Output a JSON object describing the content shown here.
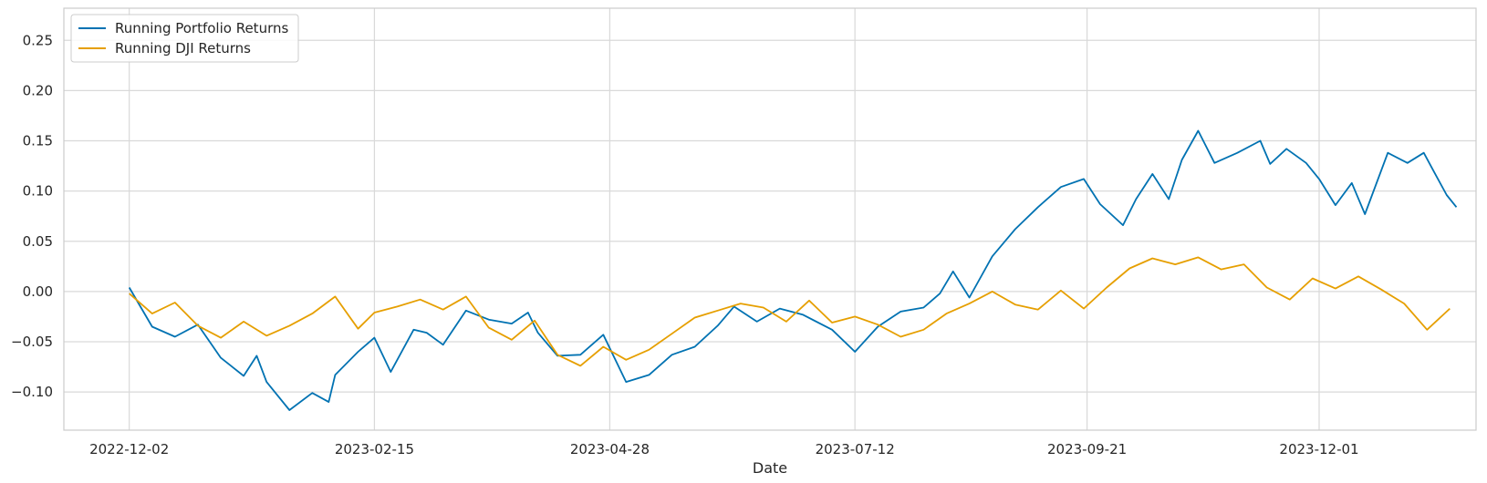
{
  "chart_data": {
    "type": "line",
    "title": "",
    "xlabel": "Date",
    "ylabel": "",
    "grid": true,
    "legend_position": "upper-left",
    "x_tick_labels": [
      "2022-12-02",
      "2023-02-15",
      "2023-04-28",
      "2023-07-12",
      "2023-09-21",
      "2023-12-01"
    ],
    "y_ticks": [
      -0.1,
      -0.05,
      0.0,
      0.05,
      0.1,
      0.15,
      0.2,
      0.25
    ],
    "y_tick_labels": [
      "−0.10",
      "−0.05",
      "0.00",
      "0.05",
      "0.10",
      "0.15",
      "0.20",
      "0.25"
    ],
    "ylim": [
      -0.138,
      0.282
    ],
    "xlim": [
      "2022-11-12",
      "2024-01-18"
    ],
    "series": [
      {
        "name": "Running Portfolio Returns",
        "color": "#0072b2",
        "points": [
          [
            "2022-12-02",
            0.004
          ],
          [
            "2022-12-09",
            -0.035
          ],
          [
            "2022-12-16",
            -0.045
          ],
          [
            "2022-12-23",
            -0.033
          ],
          [
            "2022-12-30",
            -0.066
          ],
          [
            "2023-01-06",
            -0.084
          ],
          [
            "2023-01-10",
            -0.064
          ],
          [
            "2023-01-13",
            -0.09
          ],
          [
            "2023-01-20",
            -0.118
          ],
          [
            "2023-01-27",
            -0.101
          ],
          [
            "2023-02-01",
            -0.11
          ],
          [
            "2023-02-03",
            -0.083
          ],
          [
            "2023-02-10",
            -0.06
          ],
          [
            "2023-02-15",
            -0.046
          ],
          [
            "2023-02-20",
            -0.08
          ],
          [
            "2023-02-27",
            -0.038
          ],
          [
            "2023-03-03",
            -0.041
          ],
          [
            "2023-03-08",
            -0.053
          ],
          [
            "2023-03-15",
            -0.019
          ],
          [
            "2023-03-22",
            -0.028
          ],
          [
            "2023-03-29",
            -0.032
          ],
          [
            "2023-04-03",
            -0.021
          ],
          [
            "2023-04-06",
            -0.041
          ],
          [
            "2023-04-12",
            -0.064
          ],
          [
            "2023-04-19",
            -0.063
          ],
          [
            "2023-04-26",
            -0.043
          ],
          [
            "2023-05-03",
            -0.09
          ],
          [
            "2023-05-10",
            -0.083
          ],
          [
            "2023-05-17",
            -0.063
          ],
          [
            "2023-05-24",
            -0.055
          ],
          [
            "2023-05-31",
            -0.034
          ],
          [
            "2023-06-05",
            -0.015
          ],
          [
            "2023-06-12",
            -0.03
          ],
          [
            "2023-06-19",
            -0.017
          ],
          [
            "2023-06-26",
            -0.023
          ],
          [
            "2023-07-05",
            -0.038
          ],
          [
            "2023-07-12",
            -0.06
          ],
          [
            "2023-07-19",
            -0.035
          ],
          [
            "2023-07-26",
            -0.02
          ],
          [
            "2023-08-02",
            -0.016
          ],
          [
            "2023-08-07",
            -0.002
          ],
          [
            "2023-08-11",
            0.02
          ],
          [
            "2023-08-16",
            -0.006
          ],
          [
            "2023-08-23",
            0.035
          ],
          [
            "2023-08-30",
            0.062
          ],
          [
            "2023-09-06",
            0.084
          ],
          [
            "2023-09-13",
            0.104
          ],
          [
            "2023-09-20",
            0.112
          ],
          [
            "2023-09-25",
            0.087
          ],
          [
            "2023-10-02",
            0.066
          ],
          [
            "2023-10-06",
            0.092
          ],
          [
            "2023-10-11",
            0.117
          ],
          [
            "2023-10-16",
            0.092
          ],
          [
            "2023-10-20",
            0.131
          ],
          [
            "2023-10-25",
            0.16
          ],
          [
            "2023-10-30",
            0.128
          ],
          [
            "2023-11-06",
            0.138
          ],
          [
            "2023-11-13",
            0.15
          ],
          [
            "2023-11-16",
            0.127
          ],
          [
            "2023-11-21",
            0.142
          ],
          [
            "2023-11-27",
            0.128
          ],
          [
            "2023-12-01",
            0.112
          ],
          [
            "2023-12-06",
            0.086
          ],
          [
            "2023-12-11",
            0.108
          ],
          [
            "2023-12-15",
            0.077
          ],
          [
            "2023-12-22",
            0.138
          ],
          [
            "2023-12-28",
            0.128
          ],
          [
            "2024-01-02",
            0.138
          ],
          [
            "2024-01-05",
            0.12
          ],
          [
            "2024-01-09",
            0.096
          ],
          [
            "2024-01-12",
            0.084
          ]
        ]
      },
      {
        "name": "Running DJI Returns",
        "color": "#e69f00",
        "points": [
          [
            "2022-12-02",
            -0.002
          ],
          [
            "2022-12-09",
            -0.022
          ],
          [
            "2022-12-16",
            -0.011
          ],
          [
            "2022-12-23",
            -0.034
          ],
          [
            "2022-12-30",
            -0.046
          ],
          [
            "2023-01-06",
            -0.03
          ],
          [
            "2023-01-13",
            -0.044
          ],
          [
            "2023-01-20",
            -0.034
          ],
          [
            "2023-01-27",
            -0.022
          ],
          [
            "2023-02-03",
            -0.005
          ],
          [
            "2023-02-10",
            -0.037
          ],
          [
            "2023-02-15",
            -0.021
          ],
          [
            "2023-02-22",
            -0.015
          ],
          [
            "2023-03-01",
            -0.008
          ],
          [
            "2023-03-08",
            -0.018
          ],
          [
            "2023-03-15",
            -0.005
          ],
          [
            "2023-03-22",
            -0.036
          ],
          [
            "2023-03-29",
            -0.048
          ],
          [
            "2023-04-05",
            -0.029
          ],
          [
            "2023-04-12",
            -0.063
          ],
          [
            "2023-04-19",
            -0.074
          ],
          [
            "2023-04-26",
            -0.055
          ],
          [
            "2023-05-03",
            -0.068
          ],
          [
            "2023-05-10",
            -0.058
          ],
          [
            "2023-05-17",
            -0.042
          ],
          [
            "2023-05-24",
            -0.026
          ],
          [
            "2023-05-31",
            -0.019
          ],
          [
            "2023-06-07",
            -0.012
          ],
          [
            "2023-06-14",
            -0.016
          ],
          [
            "2023-06-21",
            -0.03
          ],
          [
            "2023-06-28",
            -0.009
          ],
          [
            "2023-07-05",
            -0.031
          ],
          [
            "2023-07-12",
            -0.025
          ],
          [
            "2023-07-19",
            -0.033
          ],
          [
            "2023-07-26",
            -0.045
          ],
          [
            "2023-08-02",
            -0.038
          ],
          [
            "2023-08-09",
            -0.022
          ],
          [
            "2023-08-16",
            -0.012
          ],
          [
            "2023-08-23",
            0.0
          ],
          [
            "2023-08-30",
            -0.013
          ],
          [
            "2023-09-06",
            -0.018
          ],
          [
            "2023-09-13",
            0.001
          ],
          [
            "2023-09-20",
            -0.017
          ],
          [
            "2023-09-27",
            0.004
          ],
          [
            "2023-10-04",
            0.023
          ],
          [
            "2023-10-11",
            0.033
          ],
          [
            "2023-10-18",
            0.027
          ],
          [
            "2023-10-25",
            0.034
          ],
          [
            "2023-11-01",
            0.022
          ],
          [
            "2023-11-08",
            0.027
          ],
          [
            "2023-11-15",
            0.004
          ],
          [
            "2023-11-22",
            -0.008
          ],
          [
            "2023-11-29",
            0.013
          ],
          [
            "2023-12-06",
            0.003
          ],
          [
            "2023-12-13",
            0.015
          ],
          [
            "2023-12-20",
            0.002
          ],
          [
            "2023-12-27",
            -0.012
          ],
          [
            "2024-01-03",
            -0.038
          ],
          [
            "2024-01-10",
            -0.017
          ]
        ]
      }
    ]
  }
}
